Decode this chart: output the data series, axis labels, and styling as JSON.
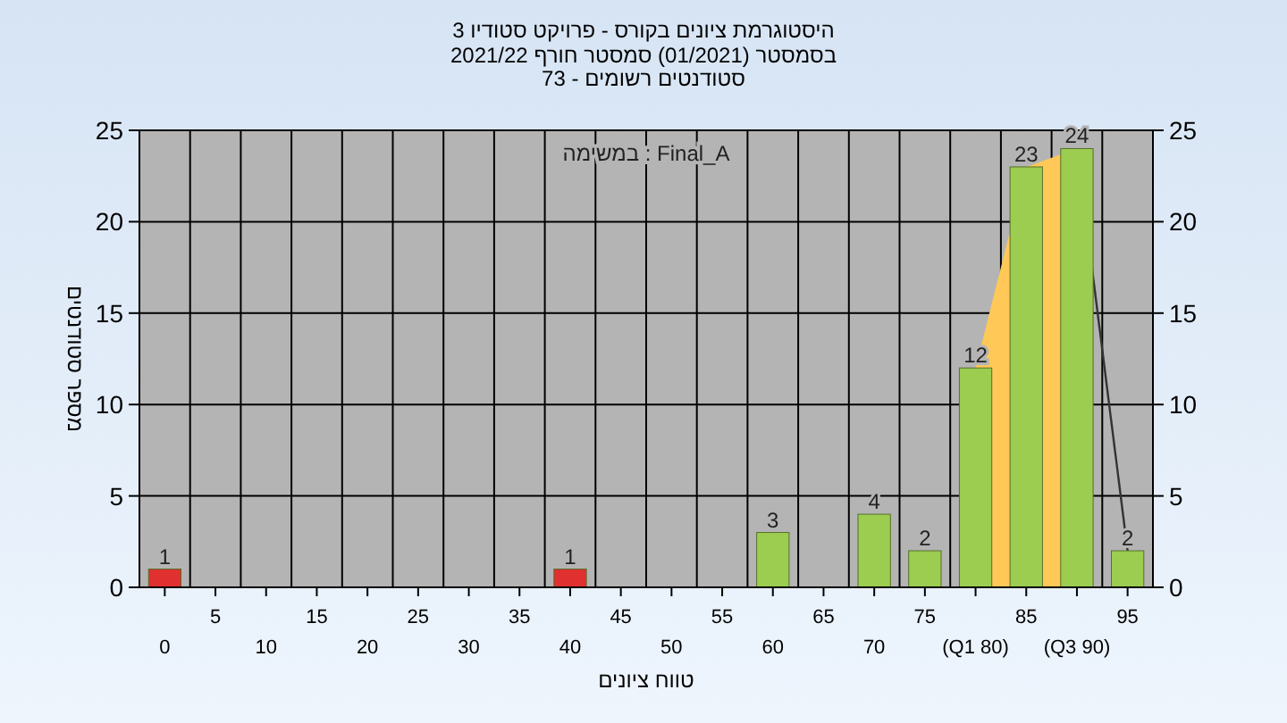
{
  "chart_data": {
    "type": "bar",
    "title": "היסטוגרמת ציונים בקורס - פרויקט סטודיו 3",
    "subtitle": "בסמסטר  (01/2021)  סמסטר חורף 2021/22\nסטודנטים רשומים - 73",
    "xlabel": "טווח ציונים",
    "ylabel": "מספר סטודנטים",
    "annotations": [
      "במשימה : Final_A"
    ],
    "categories": [
      "0",
      "5",
      "10",
      "15",
      "20",
      "25",
      "30",
      "35",
      "40",
      "45",
      "50",
      "55",
      "60",
      "65",
      "70",
      "75",
      "(Q1 80)",
      "85",
      "(Q3 90)",
      "95"
    ],
    "series": [
      {
        "type": "area",
        "color": "#ffc857",
        "values": [
          null,
          null,
          null,
          null,
          null,
          null,
          null,
          null,
          null,
          null,
          null,
          null,
          null,
          null,
          null,
          null,
          12,
          23,
          24,
          null
        ]
      },
      {
        "type": "line",
        "color": "#333333",
        "values": [
          null,
          null,
          null,
          null,
          null,
          null,
          null,
          null,
          null,
          null,
          null,
          null,
          null,
          null,
          null,
          null,
          null,
          null,
          24,
          2
        ]
      },
      {
        "colors": [
          "#e03030",
          "#9ccc50",
          "#9ccc50",
          "#9ccc50",
          "#9ccc50",
          "#9ccc50",
          "#9ccc50",
          "#9ccc50",
          "#e03030",
          "#9ccc50",
          "#9ccc50",
          "#9ccc50",
          "#9ccc50",
          "#9ccc50",
          "#9ccc50",
          "#9ccc50",
          "#9ccc50",
          "#9ccc50",
          "#9ccc50",
          "#9ccc50"
        ],
        "values": [
          1,
          0,
          0,
          0,
          0,
          0,
          0,
          0,
          1,
          0,
          0,
          0,
          3,
          0,
          4,
          2,
          12,
          23,
          24,
          2
        ],
        "value_labels": [
          "1",
          null,
          null,
          null,
          null,
          null,
          null,
          null,
          "1",
          null,
          null,
          null,
          "3",
          null,
          "4",
          "2",
          "12",
          "23",
          "24",
          "2"
        ]
      }
    ],
    "ylim": [
      0,
      25
    ],
    "yticks": [
      0,
      5,
      10,
      15,
      20,
      25
    ],
    "y2lim": [
      0,
      25
    ],
    "y2ticks": [
      0,
      5,
      10,
      15,
      20,
      25
    ],
    "grid": true
  }
}
